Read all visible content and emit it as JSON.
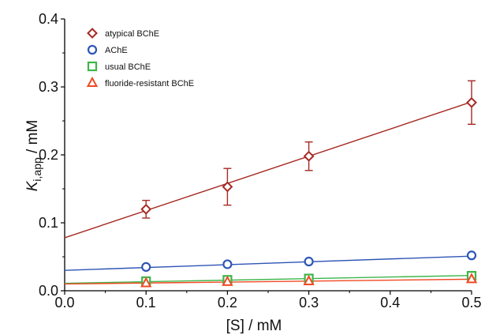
{
  "chart_data": {
    "type": "scatter",
    "title": "",
    "xlabel": "[S] / mM",
    "ylabel": {
      "main": "K",
      "sub": "i,app",
      "rest": " / mM"
    },
    "xlim": [
      0.0,
      0.5
    ],
    "ylim": [
      0.0,
      0.4
    ],
    "xticks": [
      "0.0",
      "0.1",
      "0.2",
      "0.3",
      "0.4",
      "0.5"
    ],
    "yticks": [
      "0.0",
      "0.1",
      "0.2",
      "0.3",
      "0.4"
    ],
    "grid": false,
    "legend_position": "top-left",
    "series": [
      {
        "name": "atypical BChE",
        "marker": "diamond",
        "color": "#A52A23",
        "x": [
          0.1,
          0.2,
          0.3,
          0.5
        ],
        "y": [
          0.12,
          0.153,
          0.198,
          0.277
        ],
        "error": [
          0.013,
          0.027,
          0.021,
          0.032
        ],
        "fit": {
          "intercept": 0.078,
          "slope": 0.4
        }
      },
      {
        "name": "AChE",
        "marker": "circle",
        "color": "#2D55B5",
        "x": [
          0.1,
          0.2,
          0.3,
          0.5
        ],
        "y": [
          0.035,
          0.039,
          0.043,
          0.052
        ],
        "error": null,
        "fit": {
          "intercept": 0.03,
          "slope": 0.042
        }
      },
      {
        "name": "usual BChE",
        "marker": "square",
        "color": "#3DB54A",
        "x": [
          0.1,
          0.2,
          0.3,
          0.5
        ],
        "y": [
          0.014,
          0.016,
          0.018,
          0.022
        ],
        "error": null,
        "fit": {
          "intercept": 0.011,
          "slope": 0.023
        }
      },
      {
        "name": "fluoride-resistant BChE",
        "marker": "triangle",
        "color": "#F04A23",
        "x": [
          0.1,
          0.2,
          0.3,
          0.5
        ],
        "y": [
          0.011,
          0.013,
          0.014,
          0.017
        ],
        "error": null,
        "fit": {
          "intercept": 0.01,
          "slope": 0.014
        }
      }
    ]
  }
}
